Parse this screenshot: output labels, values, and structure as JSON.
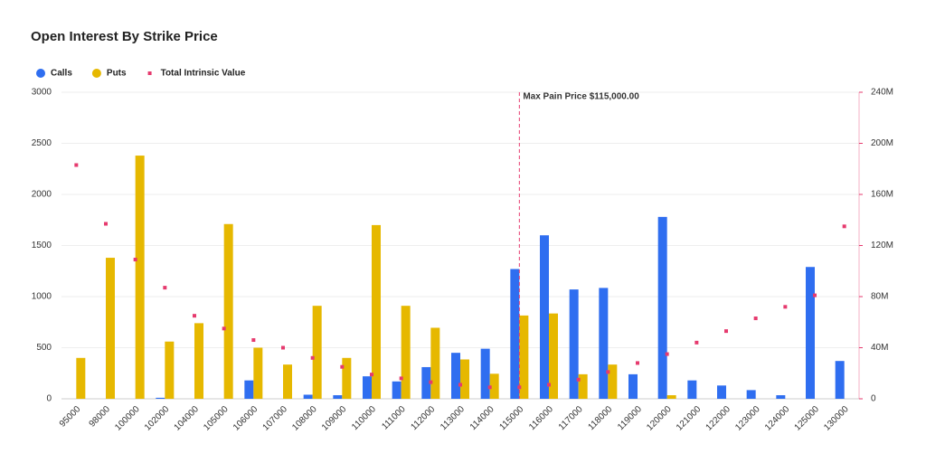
{
  "chart_data": {
    "type": "bar",
    "title": "Open Interest By Strike Price",
    "categories": [
      "95000",
      "98000",
      "100000",
      "102000",
      "104000",
      "105000",
      "106000",
      "107000",
      "108000",
      "109000",
      "110000",
      "111000",
      "112000",
      "113000",
      "114000",
      "115000",
      "116000",
      "117000",
      "118000",
      "119000",
      "120000",
      "121000",
      "122000",
      "123000",
      "124000",
      "125000",
      "130000"
    ],
    "series": [
      {
        "name": "Calls",
        "type": "bar",
        "color": "#2f6ef0",
        "values": [
          0,
          0,
          0,
          10,
          0,
          0,
          180,
          0,
          40,
          35,
          220,
          170,
          310,
          450,
          490,
          1270,
          1600,
          1070,
          1085,
          240,
          1780,
          180,
          130,
          85,
          35,
          1290,
          370
        ]
      },
      {
        "name": "Puts",
        "type": "bar",
        "color": "#e6b800",
        "values": [
          400,
          1380,
          2380,
          560,
          740,
          1710,
          500,
          335,
          910,
          400,
          1700,
          910,
          695,
          385,
          245,
          815,
          835,
          240,
          335,
          0,
          35,
          0,
          0,
          0,
          0,
          0,
          0
        ]
      },
      {
        "name": "Total Intrinsic Value",
        "type": "scatter",
        "axis": "y2",
        "color": "#e63a6e",
        "values": [
          183000000,
          137000000,
          109000000,
          87000000,
          65000000,
          55000000,
          46000000,
          40000000,
          32000000,
          25000000,
          19000000,
          16000000,
          13000000,
          11000000,
          9000000,
          9000000,
          11000000,
          15000000,
          21000000,
          28000000,
          35000000,
          44000000,
          53000000,
          63000000,
          72000000,
          81000000,
          135000000
        ]
      }
    ],
    "ylim": [
      0,
      3000
    ],
    "yticks": [
      0,
      500,
      1000,
      1500,
      2000,
      2500,
      3000
    ],
    "y2lim": [
      0,
      240000000
    ],
    "y2ticks": [
      {
        "value": 0,
        "label": "0"
      },
      {
        "value": 40000000,
        "label": "40M"
      },
      {
        "value": 80000000,
        "label": "80M"
      },
      {
        "value": 120000000,
        "label": "120M"
      },
      {
        "value": 160000000,
        "label": "160M"
      },
      {
        "value": 200000000,
        "label": "200M"
      },
      {
        "value": 240000000,
        "label": "240M"
      }
    ],
    "y2color": "#e63a6e",
    "grid": true,
    "legend": "top-left",
    "annotation": {
      "text": "Max Pain Price $115,000.00",
      "x": "115000"
    }
  }
}
